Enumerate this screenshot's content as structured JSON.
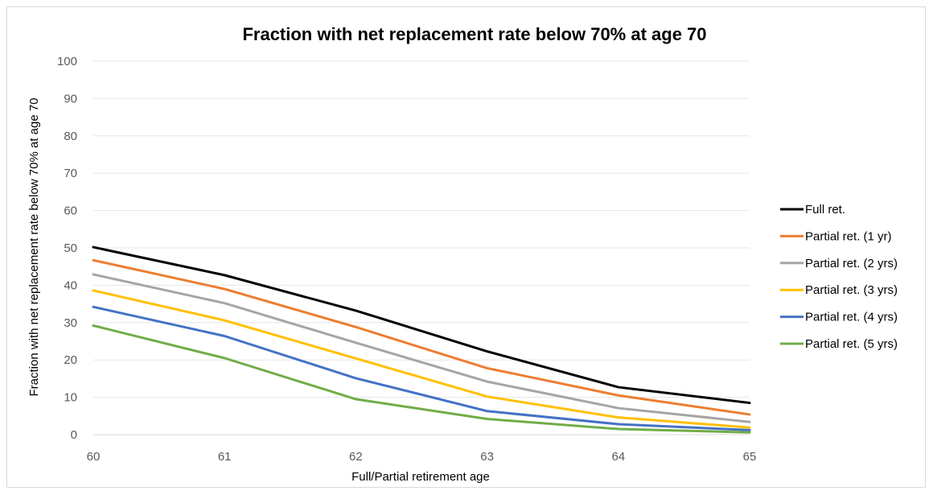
{
  "chart_data": {
    "type": "line",
    "title": "Fraction with net replacement rate below 70% at age 70",
    "xlabel": "Full/Partial retirement age",
    "ylabel": "Fraction with net replacement rate below 70% at age 70",
    "x": [
      60,
      61,
      62,
      63,
      64,
      65
    ],
    "ylim": [
      0,
      100
    ],
    "yticks": [
      0,
      10,
      20,
      30,
      40,
      50,
      60,
      70,
      80,
      90,
      100
    ],
    "grid": "horizontal",
    "legend_position": "right",
    "series": [
      {
        "name": "Full ret.",
        "color": "#000000",
        "values": [
          50.2,
          42.7,
          33.2,
          22.3,
          12.7,
          8.5
        ]
      },
      {
        "name": "Partial ret. (1 yr)",
        "color": "#ED7D31",
        "values": [
          46.7,
          39.0,
          28.8,
          17.8,
          10.5,
          5.4
        ]
      },
      {
        "name": "Partial ret. (2 yrs)",
        "color": "#A5A5A5",
        "values": [
          42.9,
          35.2,
          24.6,
          14.2,
          7.1,
          3.4
        ]
      },
      {
        "name": "Partial ret. (3 yrs)",
        "color": "#FFC000",
        "values": [
          38.6,
          30.6,
          20.4,
          10.2,
          4.6,
          1.9
        ]
      },
      {
        "name": "Partial ret. (4 yrs)",
        "color": "#4472C4",
        "values": [
          34.2,
          26.4,
          15.1,
          6.3,
          2.8,
          1.2
        ]
      },
      {
        "name": "Partial ret. (5 yrs)",
        "color": "#70AD47",
        "values": [
          29.2,
          20.5,
          9.5,
          4.2,
          1.5,
          0.6
        ]
      }
    ]
  }
}
